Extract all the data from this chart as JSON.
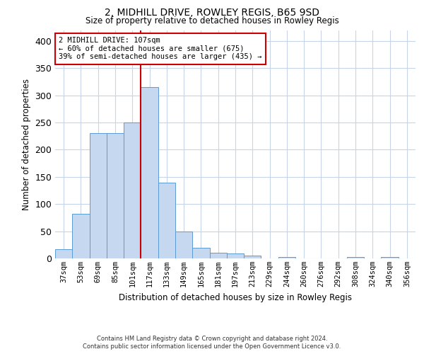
{
  "title1": "2, MIDHILL DRIVE, ROWLEY REGIS, B65 9SD",
  "title2": "Size of property relative to detached houses in Rowley Regis",
  "xlabel": "Distribution of detached houses by size in Rowley Regis",
  "ylabel": "Number of detached properties",
  "footnote1": "Contains HM Land Registry data © Crown copyright and database right 2024.",
  "footnote2": "Contains public sector information licensed under the Open Government Licence v3.0.",
  "annotation_line1": "2 MIDHILL DRIVE: 107sqm",
  "annotation_line2": "← 60% of detached houses are smaller (675)",
  "annotation_line3": "39% of semi-detached houses are larger (435) →",
  "bar_labels": [
    "37sqm",
    "53sqm",
    "69sqm",
    "85sqm",
    "101sqm",
    "117sqm",
    "133sqm",
    "149sqm",
    "165sqm",
    "181sqm",
    "197sqm",
    "213sqm",
    "229sqm",
    "244sqm",
    "260sqm",
    "276sqm",
    "292sqm",
    "308sqm",
    "324sqm",
    "340sqm",
    "356sqm"
  ],
  "bar_values": [
    17,
    82,
    230,
    230,
    250,
    315,
    140,
    50,
    20,
    10,
    9,
    5,
    0,
    3,
    0,
    0,
    0,
    3,
    0,
    3,
    0
  ],
  "bar_color": "#c5d8f0",
  "bar_edge_color": "#5b9bd5",
  "vline_color": "#cc0000",
  "annotation_box_color": "#cc0000",
  "grid_color": "#c8d4e8",
  "ylim": [
    0,
    420
  ],
  "yticks": [
    0,
    50,
    100,
    150,
    200,
    250,
    300,
    350,
    400
  ]
}
